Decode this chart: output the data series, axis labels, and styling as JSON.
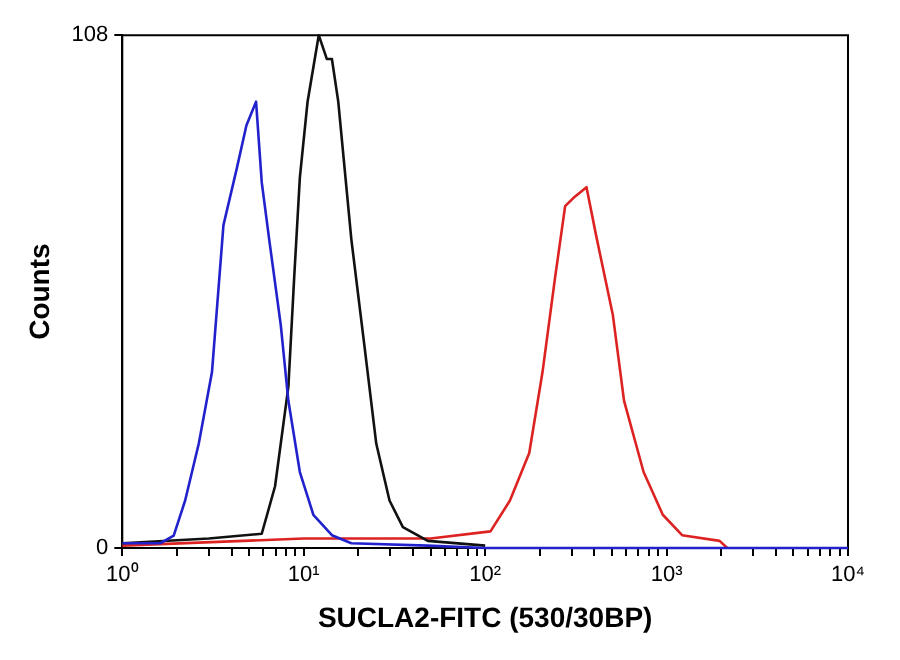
{
  "chart_data": {
    "type": "line",
    "xlabel": "SUCLA2-FITC (530/30BP)",
    "ylabel": "Counts",
    "log": "x",
    "grid": false,
    "legend": false,
    "marker": "none",
    "line_style": "solid",
    "xlim": [
      1,
      10000
    ],
    "ylim": [
      0,
      108
    ],
    "xticks": [
      {
        "value": 1,
        "label": "10⁰"
      },
      {
        "value": 2,
        "label": null
      },
      {
        "value": 3,
        "label": null
      },
      {
        "value": 4,
        "label": null
      },
      {
        "value": 5,
        "label": null
      },
      {
        "value": 6,
        "label": null
      },
      {
        "value": 7,
        "label": null
      },
      {
        "value": 8,
        "label": null
      },
      {
        "value": 9,
        "label": null
      },
      {
        "value": 10,
        "label": "10¹"
      },
      {
        "value": 20,
        "label": null
      },
      {
        "value": 30,
        "label": null
      },
      {
        "value": 40,
        "label": null
      },
      {
        "value": 50,
        "label": null
      },
      {
        "value": 60,
        "label": null
      },
      {
        "value": 70,
        "label": null
      },
      {
        "value": 80,
        "label": null
      },
      {
        "value": 90,
        "label": null
      },
      {
        "value": 100,
        "label": "10²"
      },
      {
        "value": 200,
        "label": null
      },
      {
        "value": 300,
        "label": null
      },
      {
        "value": 400,
        "label": null
      },
      {
        "value": 500,
        "label": null
      },
      {
        "value": 600,
        "label": null
      },
      {
        "value": 700,
        "label": null
      },
      {
        "value": 800,
        "label": null
      },
      {
        "value": 900,
        "label": null
      },
      {
        "value": 1000,
        "label": "10³"
      },
      {
        "value": 2000,
        "label": null
      },
      {
        "value": 3000,
        "label": null
      },
      {
        "value": 4000,
        "label": null
      },
      {
        "value": 5000,
        "label": null
      },
      {
        "value": 6000,
        "label": null
      },
      {
        "value": 7000,
        "label": null
      },
      {
        "value": 8000,
        "label": null
      },
      {
        "value": 9000,
        "label": null
      },
      {
        "value": 10000,
        "label": "10⁴"
      }
    ],
    "yticks": [
      0,
      108
    ],
    "series": [
      {
        "color": "#2222cc",
        "x": [
          1,
          1.62,
          1.92,
          2.22,
          2.64,
          3.12,
          3.61,
          4.28,
          4.83,
          5.46,
          5.87,
          6.45,
          7.47,
          8.23,
          9.52,
          11.3,
          14.3,
          18.3,
          48.3,
          100,
          10000
        ],
        "values": [
          1,
          1,
          2.6,
          10,
          22,
          37,
          68,
          80,
          89,
          94,
          77,
          65,
          47,
          31,
          16,
          7,
          2.7,
          1,
          0.5,
          0,
          0
        ]
      },
      {
        "color": "#111111",
        "x": [
          1,
          3,
          5.87,
          6.95,
          8.23,
          8.86,
          9.52,
          10.5,
          12.1,
          13.4,
          14.3,
          15.5,
          18.3,
          21.7,
          25.1,
          29.7,
          35.2,
          48.3,
          100
        ],
        "values": [
          1,
          2,
          3,
          13,
          34,
          57,
          78,
          94,
          108,
          103,
          103,
          94,
          65,
          42,
          22,
          10,
          4.4,
          1.5,
          0.5
        ]
      },
      {
        "color": "#dd2222",
        "x": [
          1,
          10,
          50,
          107,
          137,
          175,
          207,
          243,
          276,
          312,
          362,
          408,
          506,
          583,
          747,
          953,
          1218,
          1960,
          2160
        ],
        "values": [
          0.5,
          2,
          2,
          3.5,
          10,
          20,
          37,
          57,
          72,
          74,
          76,
          66,
          49,
          31,
          16,
          7,
          2.7,
          1.5,
          0
        ]
      }
    ]
  }
}
